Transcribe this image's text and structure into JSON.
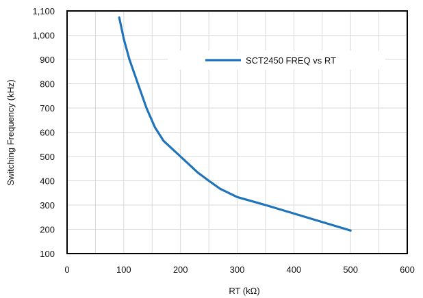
{
  "chart_data": {
    "type": "line",
    "title": "",
    "xlabel": "RT (kΩ)",
    "ylabel": "Switching Frequency  (kHz)",
    "xlim": [
      0,
      600
    ],
    "ylim": [
      100,
      1100
    ],
    "grid": true,
    "legend_position": "top-right",
    "x_ticks": [
      0,
      100,
      200,
      300,
      400,
      500,
      600
    ],
    "x_tick_labels": [
      "0",
      "100",
      "200",
      "300",
      "400",
      "500",
      "600"
    ],
    "y_ticks": [
      100,
      200,
      300,
      400,
      500,
      600,
      700,
      800,
      900,
      1000,
      1100
    ],
    "y_tick_labels": [
      "100",
      "200",
      "300",
      "400",
      "500",
      "600",
      "700",
      "800",
      "900",
      "1,000",
      "1,100"
    ],
    "series": [
      {
        "name": "SCT2450 FREQ vs RT",
        "color": "#1f73bb",
        "x": [
          92,
          100,
          110,
          125,
          140,
          155,
          170,
          200,
          230,
          250,
          270,
          300,
          350,
          400,
          450,
          500
        ],
        "y": [
          1073,
          985,
          900,
          800,
          700,
          620,
          565,
          500,
          435,
          400,
          367,
          333,
          300,
          265,
          230,
          195
        ]
      }
    ]
  }
}
